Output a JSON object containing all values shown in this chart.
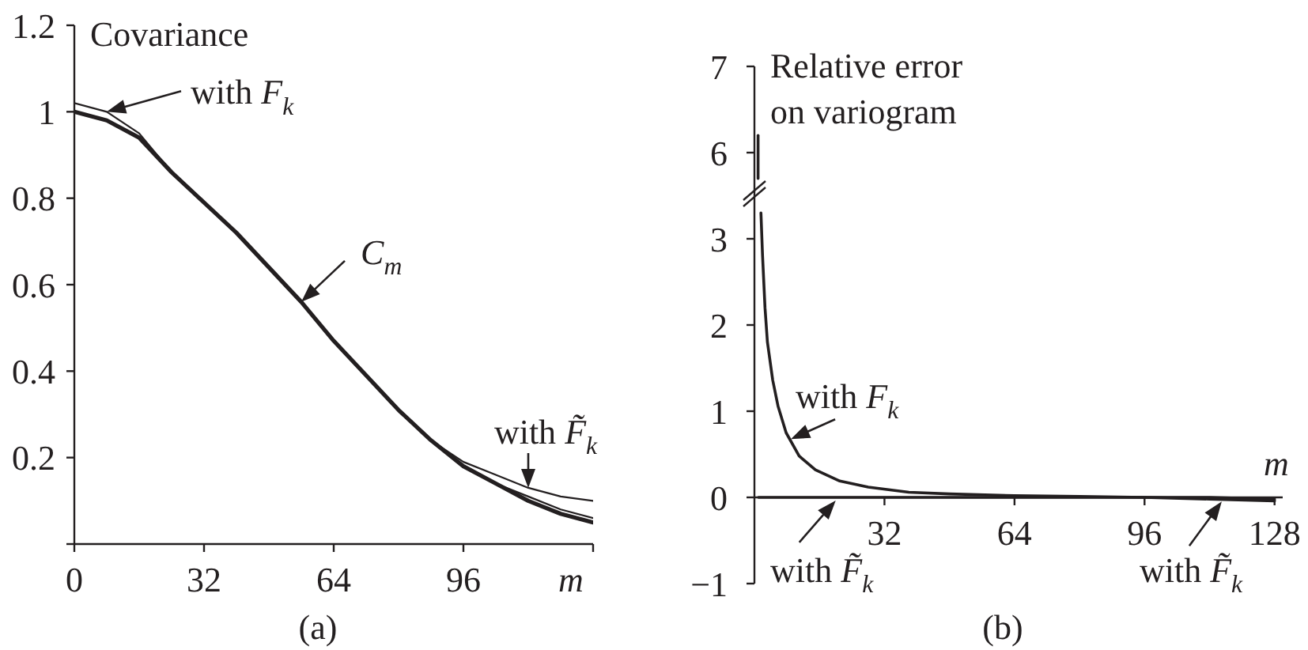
{
  "chart_data": [
    {
      "type": "line",
      "title": "(a)",
      "xlabel": "m",
      "ylabel": "Covariance",
      "xlim": [
        0,
        128
      ],
      "ylim": [
        0,
        1.2
      ],
      "xticks": [
        0,
        32,
        64,
        96,
        {
          "value": 128,
          "label": null
        }
      ],
      "yticks": [
        {
          "value": 0,
          "label": null
        },
        0.2,
        0.4,
        0.6,
        0.8,
        1,
        1.2
      ],
      "x": [
        0,
        8,
        16,
        24,
        32,
        40,
        48,
        56,
        64,
        72,
        80,
        88,
        96,
        104,
        112,
        120,
        128
      ],
      "series": [
        {
          "name": "C$_{m}$",
          "color": "#231f20",
          "values": [
            1.0,
            0.98,
            0.94,
            0.86,
            0.79,
            0.72,
            0.64,
            0.56,
            0.47,
            0.39,
            0.31,
            0.24,
            0.18,
            0.14,
            0.1,
            0.07,
            0.05
          ]
        },
        {
          "name": "with F$_{k}$",
          "color": "#231f20",
          "values": [
            1.02,
            1.0,
            0.95,
            0.86,
            0.79,
            0.72,
            0.64,
            0.56,
            0.47,
            0.39,
            0.31,
            0.24,
            0.18,
            0.14,
            0.11,
            0.08,
            0.06
          ]
        },
        {
          "name": "with F̃$_{k}$",
          "color": "#231f20",
          "values": [
            1.0,
            0.98,
            0.94,
            0.86,
            0.79,
            0.72,
            0.64,
            0.56,
            0.47,
            0.39,
            0.31,
            0.24,
            0.19,
            0.16,
            0.13,
            0.11,
            0.1
          ]
        }
      ]
    },
    {
      "type": "line",
      "title": "(b)",
      "xlabel": "m",
      "y2label": "Relative error on variogram",
      "xlim": [
        0,
        130
      ],
      "ylim": [
        -1,
        5
      ],
      "y2lim": [
        1,
        7
      ],
      "xticks": [
        32,
        64,
        96,
        128
      ],
      "yticks": [
        {
          "value": -1,
          "label": "−1"
        },
        0,
        1,
        2,
        3
      ],
      "y2ticks": [
        6,
        7
      ],
      "series": [
        {
          "name": "with F$_{k}$",
          "color": "#231f20",
          "x": [
            1.6,
            2,
            2.6,
            3.2,
            4.5,
            5.8,
            7.8,
            11,
            15,
            21,
            28,
            38,
            48,
            64,
            80,
            96,
            112,
            128
          ],
          "values": [
            3.3,
            2.8,
            2.2,
            1.8,
            1.36,
            1.06,
            0.75,
            0.48,
            0.32,
            0.19,
            0.12,
            0.06,
            0.04,
            0.02,
            0.01,
            0,
            0,
            -0.02
          ]
        },
        {
          "name": "with F̃$_{k}$",
          "color": "#231f20",
          "x": [
            1,
            20,
            32,
            48,
            64,
            80,
            96,
            112,
            128
          ],
          "values": [
            0,
            0,
            0,
            0,
            0,
            0,
            0,
            -0.02,
            -0.04
          ]
        },
        {
          "color": "#231f20",
          "axis": "y2",
          "x": [
            0.9,
            0.9
          ],
          "values": [
            6.2,
            5.7
          ]
        }
      ],
      "annotations": [
        {
          "text": "with F̃$_{k}$",
          "x": 115,
          "y": -0.03
        }
      ]
    }
  ]
}
